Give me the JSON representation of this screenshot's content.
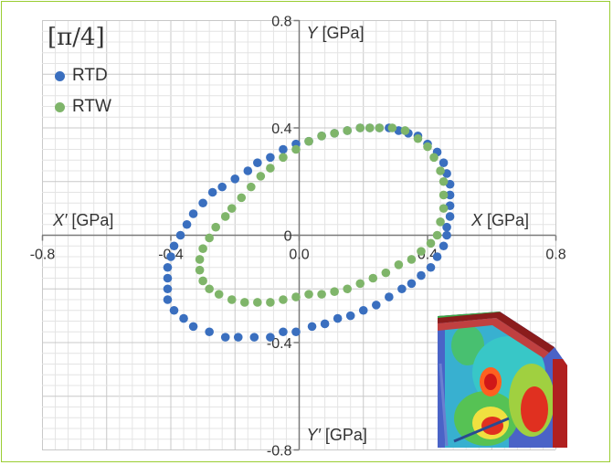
{
  "panel_label": "[π/4]",
  "chart_data": {
    "type": "scatter",
    "title": "",
    "xlim": [
      -0.8,
      0.8
    ],
    "ylim": [
      -0.8,
      0.8
    ],
    "grid": true,
    "legend_position": "top-left",
    "x_ticks": [
      "-0.8",
      "-0.4",
      "0.0",
      "0.4",
      "0.8"
    ],
    "y_ticks": [
      "0.8",
      "0.4",
      "0",
      "-0.4",
      "-0.8"
    ],
    "axis_titles": {
      "x_pos": {
        "var": "X",
        "unit": "[GPa]"
      },
      "x_neg": {
        "var": "X′",
        "unit": "[GPa]"
      },
      "y_pos": {
        "var": "Y",
        "unit": "[GPa]"
      },
      "y_neg": {
        "var": "Y′",
        "unit": "[GPa]"
      }
    },
    "series": [
      {
        "name": "RTD",
        "color": "#3a6fbf",
        "points": [
          [
            0.25,
            0.4
          ],
          [
            0.28,
            0.4
          ],
          [
            0.31,
            0.39
          ],
          [
            0.34,
            0.38
          ],
          [
            0.37,
            0.37
          ],
          [
            0.4,
            0.34
          ],
          [
            0.43,
            0.31
          ],
          [
            0.45,
            0.27
          ],
          [
            0.46,
            0.23
          ],
          [
            0.47,
            0.19
          ],
          [
            0.47,
            0.15
          ],
          [
            0.47,
            0.11
          ],
          [
            0.47,
            0.07
          ],
          [
            0.46,
            0.03
          ],
          [
            0.46,
            0.0
          ],
          [
            0.45,
            -0.04
          ],
          [
            0.43,
            -0.08
          ],
          [
            0.41,
            -0.12
          ],
          [
            0.38,
            -0.15
          ],
          [
            0.35,
            -0.18
          ],
          [
            0.32,
            -0.2
          ],
          [
            0.28,
            -0.23
          ],
          [
            0.24,
            -0.26
          ],
          [
            0.2,
            -0.28
          ],
          [
            0.16,
            -0.3
          ],
          [
            0.12,
            -0.31
          ],
          [
            0.08,
            -0.33
          ],
          [
            0.04,
            -0.34
          ],
          [
            -0.01,
            -0.36
          ],
          [
            -0.05,
            -0.36
          ],
          [
            -0.09,
            -0.38
          ],
          [
            -0.14,
            -0.38
          ],
          [
            -0.19,
            -0.38
          ],
          [
            -0.23,
            -0.38
          ],
          [
            -0.28,
            -0.36
          ],
          [
            -0.33,
            -0.34
          ],
          [
            -0.36,
            -0.31
          ],
          [
            -0.39,
            -0.28
          ],
          [
            -0.41,
            -0.24
          ],
          [
            -0.41,
            -0.2
          ],
          [
            -0.41,
            -0.16
          ],
          [
            -0.41,
            -0.12
          ],
          [
            -0.4,
            -0.08
          ],
          [
            -0.39,
            -0.04
          ],
          [
            -0.37,
            0.0
          ],
          [
            -0.35,
            0.04
          ],
          [
            -0.33,
            0.08
          ],
          [
            -0.3,
            0.12
          ],
          [
            -0.27,
            0.16
          ],
          [
            -0.24,
            0.18
          ],
          [
            -0.2,
            0.21
          ],
          [
            -0.16,
            0.24
          ],
          [
            -0.13,
            0.27
          ],
          [
            -0.09,
            0.29
          ],
          [
            -0.05,
            0.32
          ],
          [
            -0.01,
            0.34
          ],
          [
            0.03,
            0.35
          ],
          [
            0.07,
            0.37
          ],
          [
            0.11,
            0.38
          ],
          [
            0.15,
            0.39
          ],
          [
            0.19,
            0.4
          ],
          [
            0.22,
            0.4
          ]
        ]
      },
      {
        "name": "RTW",
        "color": "#7fb56a",
        "points": [
          [
            0.22,
            0.4
          ],
          [
            0.25,
            0.4
          ],
          [
            0.29,
            0.4
          ],
          [
            0.33,
            0.39
          ],
          [
            0.37,
            0.36
          ],
          [
            0.4,
            0.33
          ],
          [
            0.42,
            0.29
          ],
          [
            0.44,
            0.24
          ],
          [
            0.45,
            0.2
          ],
          [
            0.45,
            0.15
          ],
          [
            0.45,
            0.1
          ],
          [
            0.44,
            0.05
          ],
          [
            0.43,
            0.0
          ],
          [
            0.41,
            -0.03
          ],
          [
            0.38,
            -0.06
          ],
          [
            0.35,
            -0.09
          ],
          [
            0.31,
            -0.11
          ],
          [
            0.27,
            -0.14
          ],
          [
            0.23,
            -0.16
          ],
          [
            0.19,
            -0.18
          ],
          [
            0.15,
            -0.2
          ],
          [
            0.11,
            -0.21
          ],
          [
            0.07,
            -0.22
          ],
          [
            0.03,
            -0.22
          ],
          [
            -0.01,
            -0.23
          ],
          [
            -0.05,
            -0.24
          ],
          [
            -0.09,
            -0.25
          ],
          [
            -0.13,
            -0.25
          ],
          [
            -0.17,
            -0.25
          ],
          [
            -0.21,
            -0.24
          ],
          [
            -0.25,
            -0.22
          ],
          [
            -0.28,
            -0.2
          ],
          [
            -0.3,
            -0.17
          ],
          [
            -0.31,
            -0.13
          ],
          [
            -0.31,
            -0.09
          ],
          [
            -0.3,
            -0.05
          ],
          [
            -0.28,
            -0.01
          ],
          [
            -0.26,
            0.03
          ],
          [
            -0.23,
            0.07
          ],
          [
            -0.21,
            0.1
          ],
          [
            -0.18,
            0.14
          ],
          [
            -0.15,
            0.18
          ],
          [
            -0.12,
            0.22
          ],
          [
            -0.09,
            0.25
          ],
          [
            -0.05,
            0.29
          ],
          [
            -0.01,
            0.32
          ],
          [
            0.03,
            0.35
          ],
          [
            0.07,
            0.37
          ],
          [
            0.11,
            0.38
          ],
          [
            0.15,
            0.39
          ],
          [
            0.19,
            0.4
          ]
        ]
      }
    ]
  }
}
